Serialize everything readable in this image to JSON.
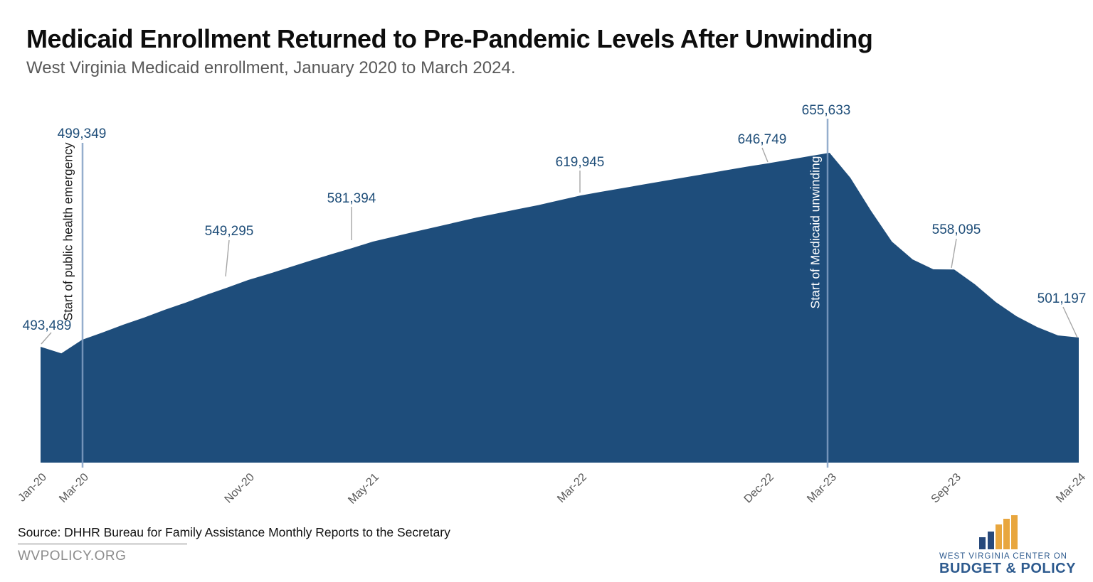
{
  "page": {
    "title": "Medicaid Enrollment Returned to Pre-Pandemic Levels After Unwinding",
    "subtitle": "West Virginia Medicaid enrollment, January 2020 to March 2024.",
    "source_label": "Source: DHHR Bureau for Family Assistance Monthly Reports to the Secretary",
    "website": "WVPOLICY.ORG"
  },
  "logo": {
    "org_line1": "WEST VIRGINIA CENTER ON",
    "org_line2": "BUDGET & POLICY",
    "icon": "ascending-bar-chart-icon",
    "colors": {
      "navy": "#27497b",
      "gold": "#e8a63e",
      "text": "#2d5a8e"
    }
  },
  "chart_data": {
    "type": "area",
    "title": "Medicaid Enrollment Returned to Pre-Pandemic Levels After Unwinding",
    "subtitle": "West Virginia Medicaid enrollment, January 2020 to March 2024.",
    "xlabel": "",
    "ylabel": "",
    "ylim": [
      396000,
      680000
    ],
    "grid": false,
    "legend": "none",
    "x": [
      "Jan-20",
      "Feb-20",
      "Mar-20",
      "Apr-20",
      "May-20",
      "Jun-20",
      "Jul-20",
      "Aug-20",
      "Sep-20",
      "Oct-20",
      "Nov-20",
      "Dec-20",
      "Jan-21",
      "Feb-21",
      "Mar-21",
      "Apr-21",
      "May-21",
      "Jun-21",
      "Jul-21",
      "Aug-21",
      "Sep-21",
      "Oct-21",
      "Nov-21",
      "Dec-21",
      "Jan-22",
      "Feb-22",
      "Mar-22",
      "Apr-22",
      "May-22",
      "Jun-22",
      "Jul-22",
      "Aug-22",
      "Sep-22",
      "Oct-22",
      "Nov-22",
      "Dec-22",
      "Jan-23",
      "Feb-23",
      "Mar-23",
      "Apr-23",
      "May-23",
      "Jun-23",
      "Jul-23",
      "Aug-23",
      "Sep-23",
      "Oct-23",
      "Nov-23",
      "Dec-23",
      "Jan-24",
      "Feb-24",
      "Mar-24"
    ],
    "series": [
      {
        "name": "West Virginia Medicaid enrollment",
        "values": [
          493489,
          488000,
          499349,
          505500,
          512000,
          518000,
          524500,
          530500,
          537000,
          543000,
          549295,
          554500,
          560000,
          565500,
          570800,
          576000,
          581394,
          585500,
          589500,
          593500,
          597500,
          601500,
          605000,
          608500,
          612000,
          616000,
          619945,
          623000,
          626000,
          629000,
          632000,
          635000,
          638000,
          641000,
          644000,
          646749,
          649700,
          652700,
          655633,
          634800,
          607000,
          581400,
          566500,
          558200,
          558095,
          545700,
          530900,
          519000,
          510000,
          503000,
          501197
        ]
      }
    ],
    "x_ticks": [
      "Jan-20",
      "Mar-20",
      "Nov-20",
      "May-21",
      "Mar-22",
      "Dec-22",
      "Mar-23",
      "Sep-23",
      "Mar-24"
    ],
    "labeled_points": [
      {
        "month": "Jan-20",
        "value": 493489,
        "label": "493,489"
      },
      {
        "month": "Mar-20",
        "value": 499349,
        "label": "499,349"
      },
      {
        "month": "Nov-20",
        "value": 549295,
        "label": "549,295"
      },
      {
        "month": "May-21",
        "value": 581394,
        "label": "581,394"
      },
      {
        "month": "Mar-22",
        "value": 619945,
        "label": "619,945"
      },
      {
        "month": "Dec-22",
        "value": 646749,
        "label": "646,749"
      },
      {
        "month": "Mar-23",
        "value": 655633,
        "label": "655,633"
      },
      {
        "month": "Sep-23",
        "value": 558095,
        "label": "558,095"
      },
      {
        "month": "Mar-24",
        "value": 501197,
        "label": "501,197"
      }
    ],
    "annotations": [
      {
        "text": "Start of public health emergency",
        "month": "Mar-20"
      },
      {
        "text": "Start of Medicaid unwinding",
        "month": "Mar-23"
      }
    ],
    "colors": {
      "area": "#1e4d7b",
      "data_label": "#1f4e79",
      "callout_line": "#a6a6a6",
      "event_line": "rgba(130,160,196,0.85)",
      "axis_label": "#595959"
    }
  }
}
